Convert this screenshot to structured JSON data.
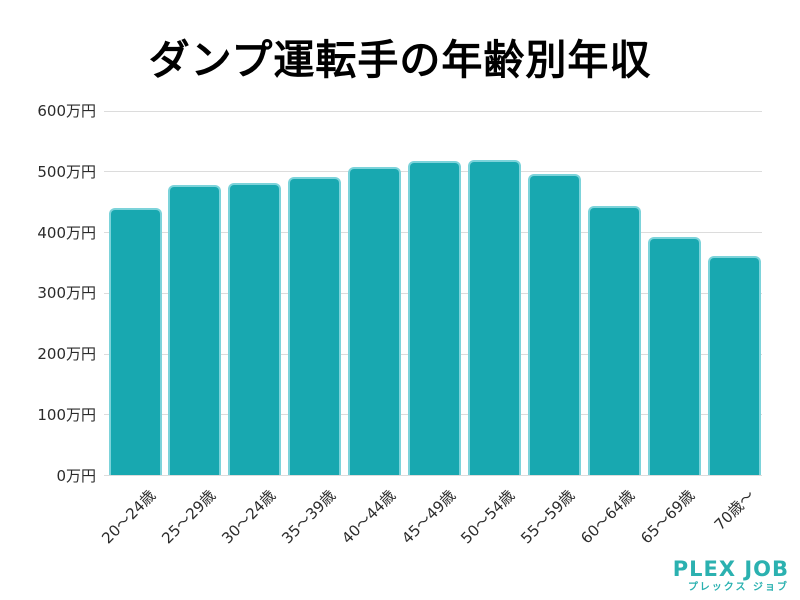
{
  "title": "ダンプ運転手の年齢別年収",
  "chart_data": {
    "type": "bar",
    "title": "ダンプ運転手の年齢別年収",
    "categories": [
      "20〜24歳",
      "25〜29歳",
      "30〜24歳",
      "35〜39歳",
      "40〜44歳",
      "45〜49歳",
      "50〜54歳",
      "55〜59歳",
      "60〜64歳",
      "65〜69歳",
      "70歳〜"
    ],
    "values": [
      440,
      479,
      481,
      491,
      507,
      517,
      520,
      496,
      444,
      393,
      361
    ],
    "unit": "万円",
    "xlabel": "",
    "ylabel": "",
    "ylim": [
      0,
      600
    ],
    "y_tick_step": 100,
    "y_tick_labels": [
      "0万円",
      "100万円",
      "200万円",
      "300万円",
      "400万円",
      "500万円",
      "600万円"
    ],
    "grid": "horizontal",
    "legend": "none",
    "colors": {
      "bar_fill": "#18a8b0",
      "bar_border": "rgba(178,234,241,0.65)",
      "gridline": "#dcdcdc",
      "tick_text": "#2b2b2b",
      "title_text": "#000000"
    }
  },
  "footer": {
    "logo_text": "PLEX JOB",
    "logo_subtext": "プレックス ジョブ",
    "logo_color": "#2bb1b0"
  }
}
